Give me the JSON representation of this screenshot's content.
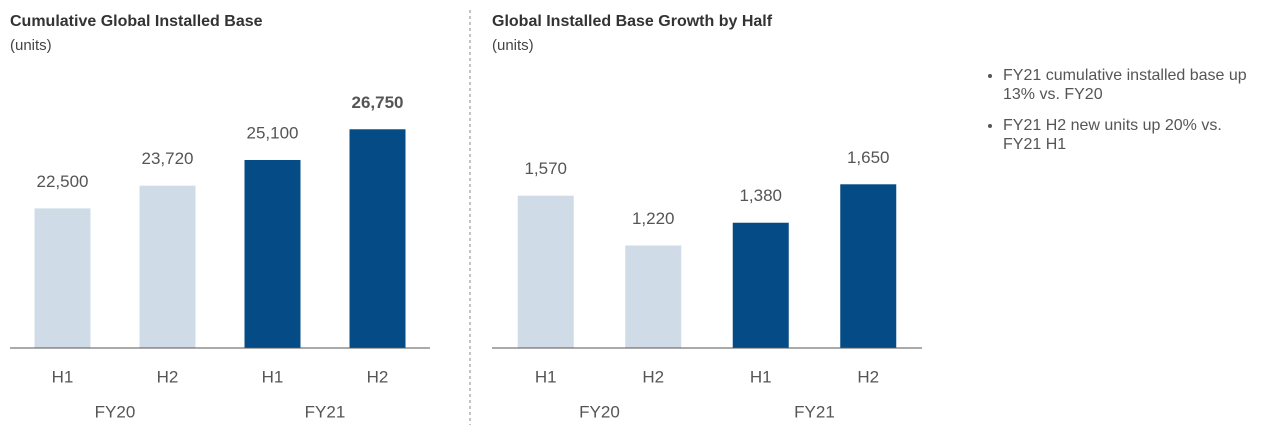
{
  "chart_data": [
    {
      "type": "bar",
      "title": "Cumulative Global Installed Base",
      "subtitle": "(units)",
      "categories": [
        "H1",
        "H2",
        "H1",
        "H2"
      ],
      "group_labels": [
        "FY20",
        "FY21"
      ],
      "values": [
        22500,
        23720,
        25100,
        26750
      ],
      "value_labels": [
        "22,500",
        "23,720",
        "25,100",
        "26,750"
      ],
      "colors": [
        "#cfdce8",
        "#cfdce8",
        "#054b86",
        "#054b86"
      ],
      "ylim": [
        15000,
        28000
      ]
    },
    {
      "type": "bar",
      "title": "Global Installed Base Growth by Half",
      "subtitle": "(units)",
      "categories": [
        "H1",
        "H2",
        "H1",
        "H2"
      ],
      "group_labels": [
        "FY20",
        "FY21"
      ],
      "values": [
        1570,
        1220,
        1380,
        1650
      ],
      "value_labels": [
        "1,570",
        "1,220",
        "1,380",
        "1,650"
      ],
      "colors": [
        "#cfdce8",
        "#cfdce8",
        "#054b86",
        "#054b86"
      ],
      "ylim": [
        500,
        2200
      ]
    }
  ],
  "bullets": [
    "FY21 cumulative installed base up 13% vs. FY20",
    "FY21 H2 new units up 20% vs. FY21 H1"
  ]
}
